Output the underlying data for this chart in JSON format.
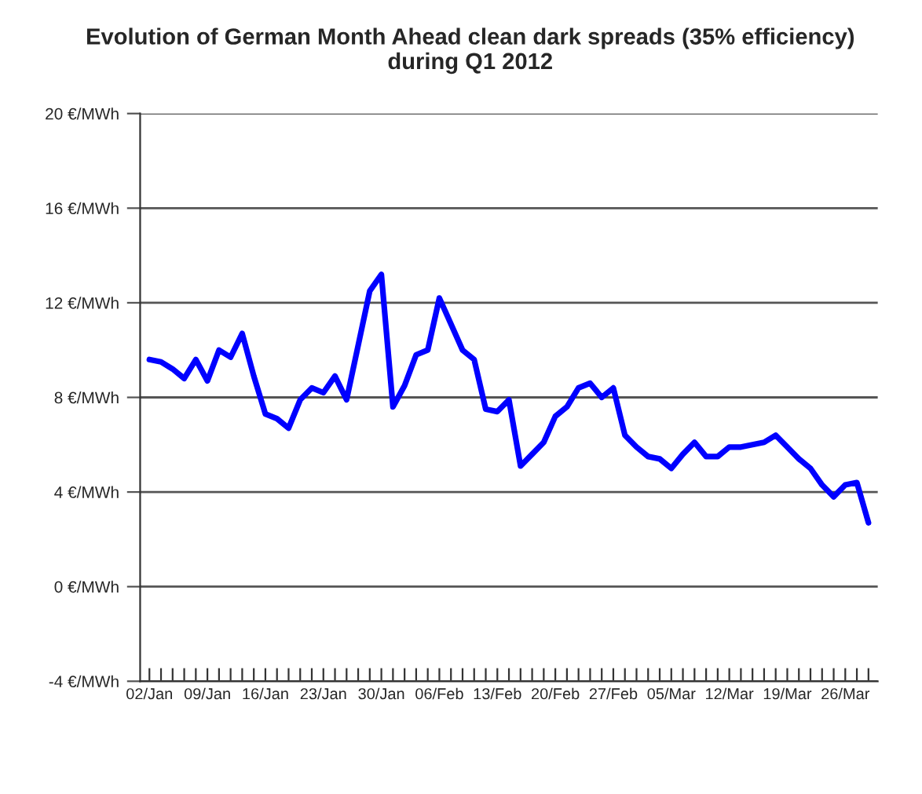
{
  "chart_data": {
    "type": "line",
    "title": "Evolution of German Month Ahead clean dark spreads (35% efficiency)\nduring Q1 2012",
    "categories": [
      "02/Jan",
      null,
      null,
      null,
      null,
      "09/Jan",
      null,
      null,
      null,
      null,
      "16/Jan",
      null,
      null,
      null,
      null,
      "23/Jan",
      null,
      null,
      null,
      null,
      "30/Jan",
      null,
      null,
      null,
      null,
      "06/Feb",
      null,
      null,
      null,
      null,
      "13/Feb",
      null,
      null,
      null,
      null,
      "20/Feb",
      null,
      null,
      null,
      null,
      "27/Feb",
      null,
      null,
      null,
      null,
      "05/Mar",
      null,
      null,
      null,
      null,
      "12/Mar",
      null,
      null,
      null,
      null,
      "19/Mar",
      null,
      null,
      null,
      null,
      "26/Mar",
      null,
      null
    ],
    "series": [
      {
        "color": "#0000ff",
        "values": [
          9.6,
          9.5,
          9.2,
          8.8,
          9.6,
          8.7,
          10.0,
          9.7,
          10.7,
          8.9,
          7.3,
          7.1,
          6.7,
          7.9,
          8.4,
          8.2,
          8.9,
          7.9,
          10.2,
          12.5,
          13.2,
          7.6,
          8.5,
          9.8,
          10.0,
          12.2,
          11.1,
          10.0,
          9.6,
          7.5,
          7.4,
          7.9,
          5.1,
          5.6,
          6.1,
          7.2,
          7.6,
          8.4,
          8.6,
          8.0,
          8.4,
          6.4,
          5.9,
          5.5,
          5.4,
          5.0,
          5.6,
          6.1,
          5.5,
          5.5,
          5.9,
          5.9,
          6.0,
          6.1,
          6.4,
          5.9,
          5.4,
          5.0,
          4.3,
          3.8,
          4.3,
          4.4,
          2.7
        ]
      }
    ],
    "ylim": [
      -4,
      20
    ],
    "yticks": [
      {
        "value": -4,
        "label": "-4 €/MWh"
      },
      {
        "value": 0,
        "label": "0 €/MWh"
      },
      {
        "value": 4,
        "label": "4 €/MWh"
      },
      {
        "value": 8,
        "label": "8 €/MWh"
      },
      {
        "value": 12,
        "label": "12 €/MWh"
      },
      {
        "value": 16,
        "label": "16 €/MWh"
      },
      {
        "value": 20,
        "label": "20 €/MWh"
      }
    ],
    "grid": "y",
    "marker": "none",
    "line_style": "solid",
    "legend": false
  }
}
